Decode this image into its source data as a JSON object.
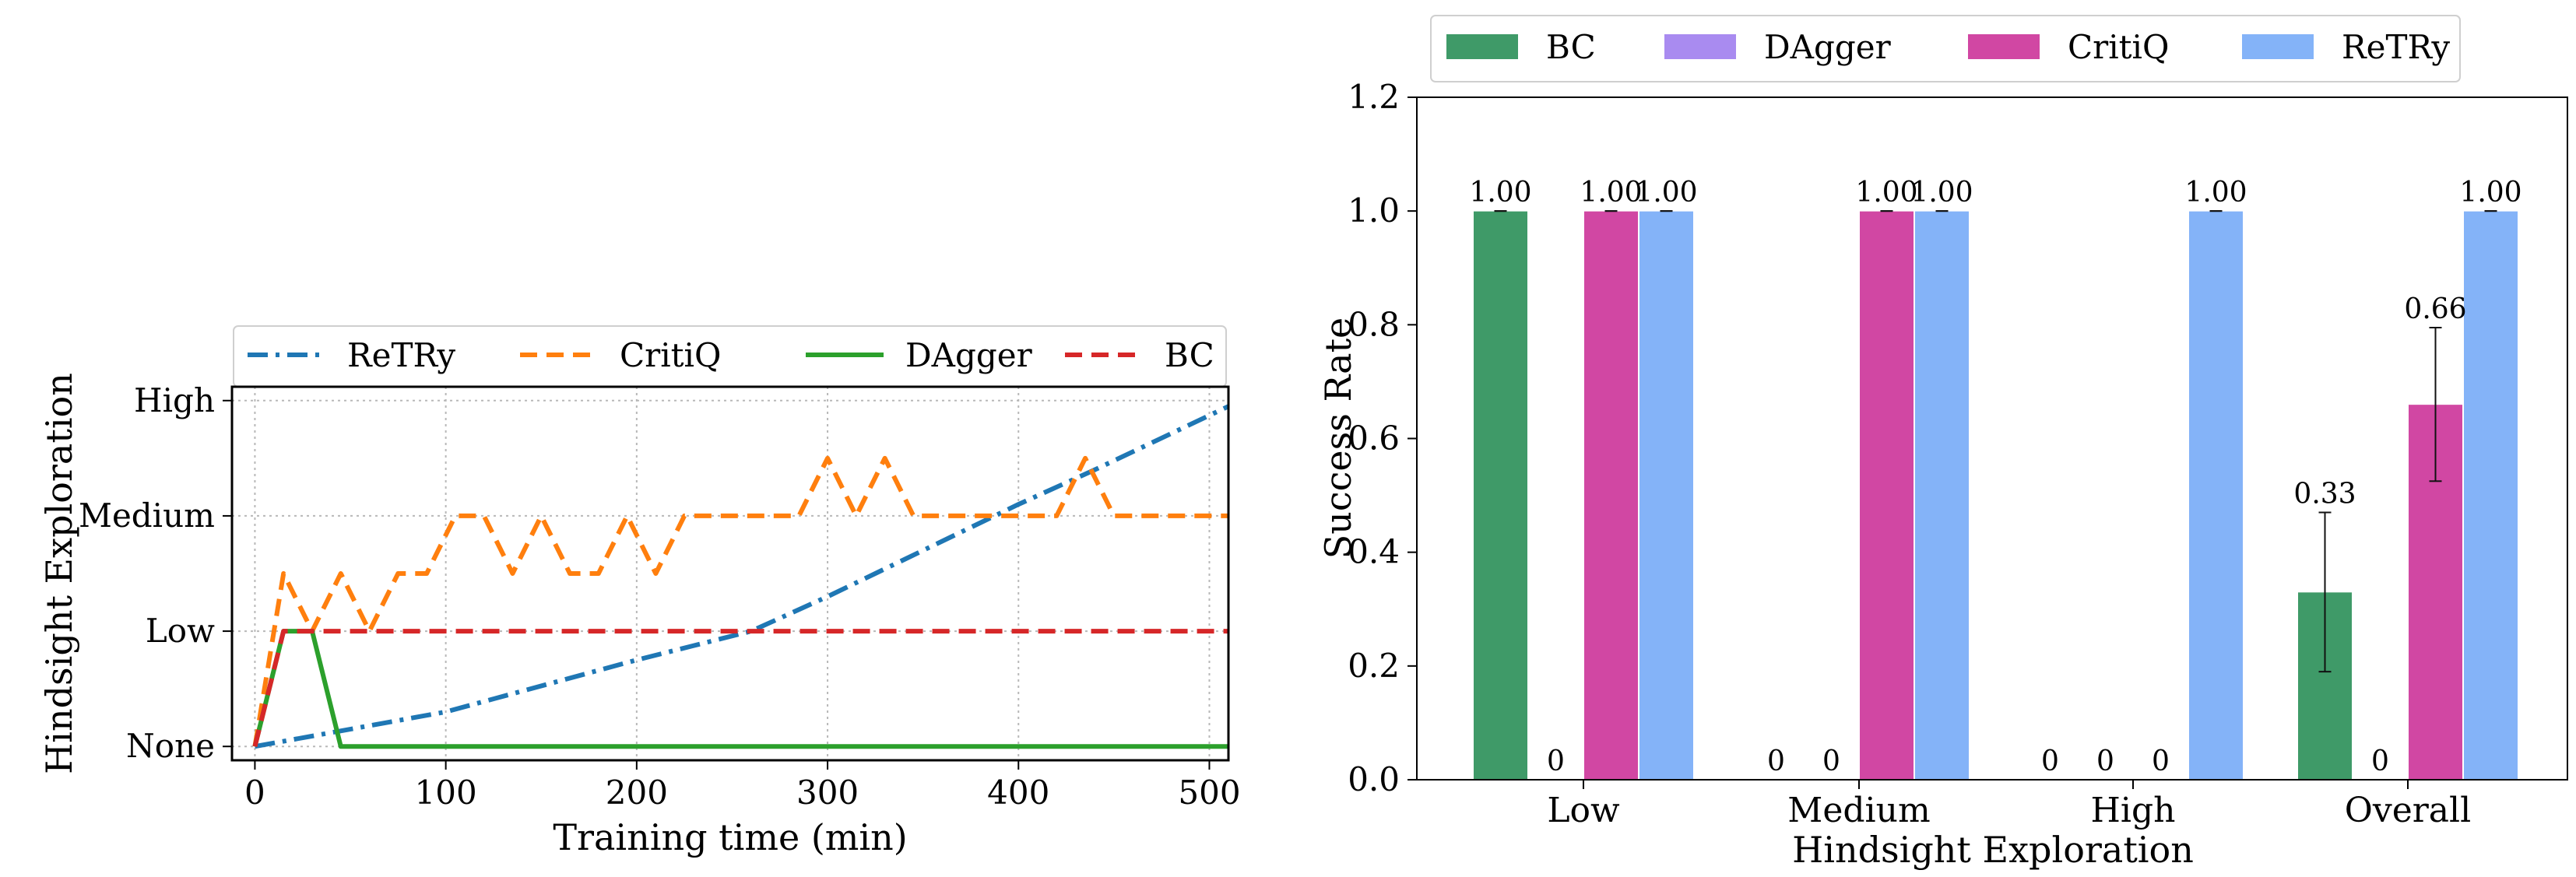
{
  "chart_data": [
    {
      "type": "line",
      "xlabel": "Training time (min)",
      "ylabel": "Hindsight Exploration",
      "xlim": [
        -12,
        510
      ],
      "ylim": [
        -0.12,
        3.12
      ],
      "x_ticks": [
        0,
        100,
        200,
        300,
        400,
        500
      ],
      "y_ticks": [
        0,
        1,
        2,
        3
      ],
      "y_tick_labels": [
        "None",
        "Low",
        "Medium",
        "High"
      ],
      "grid": true,
      "legend_position": "top",
      "series": [
        {
          "name": "ReTRy",
          "color": "#1f77b4",
          "style": "dashdot",
          "points": [
            [
              0,
              0
            ],
            [
              100,
              0.3
            ],
            [
              200,
              0.75
            ],
            [
              260,
              1.0
            ],
            [
              300,
              1.3
            ],
            [
              400,
              2.1
            ],
            [
              440,
              2.4
            ],
            [
              510,
              2.95
            ]
          ]
        },
        {
          "name": "CritiQ",
          "color": "#ff7f0e",
          "style": "dashed",
          "points": [
            [
              0,
              0
            ],
            [
              15,
              1.5
            ],
            [
              30,
              1.0
            ],
            [
              45,
              1.5
            ],
            [
              60,
              1.0
            ],
            [
              75,
              1.5
            ],
            [
              90,
              1.5
            ],
            [
              105,
              2.0
            ],
            [
              120,
              2.0
            ],
            [
              135,
              1.5
            ],
            [
              150,
              2.0
            ],
            [
              165,
              1.5
            ],
            [
              180,
              1.5
            ],
            [
              195,
              2.0
            ],
            [
              210,
              1.5
            ],
            [
              225,
              2.0
            ],
            [
              240,
              2.0
            ],
            [
              255,
              2.0
            ],
            [
              270,
              2.0
            ],
            [
              285,
              2.0
            ],
            [
              300,
              2.5
            ],
            [
              315,
              2.0
            ],
            [
              330,
              2.5
            ],
            [
              345,
              2.0
            ],
            [
              360,
              2.0
            ],
            [
              375,
              2.0
            ],
            [
              390,
              2.0
            ],
            [
              405,
              2.0
            ],
            [
              420,
              2.0
            ],
            [
              435,
              2.5
            ],
            [
              450,
              2.0
            ],
            [
              465,
              2.0
            ],
            [
              480,
              2.0
            ],
            [
              495,
              2.0
            ],
            [
              510,
              2.0
            ]
          ]
        },
        {
          "name": "DAgger",
          "color": "#2ca02c",
          "style": "solid",
          "points": [
            [
              0,
              0
            ],
            [
              15,
              1.0
            ],
            [
              30,
              1.0
            ],
            [
              45,
              0
            ],
            [
              510,
              0
            ]
          ]
        },
        {
          "name": "BC",
          "color": "#d62728",
          "style": "dashed",
          "points": [
            [
              0,
              0
            ],
            [
              15,
              1.0
            ],
            [
              510,
              1.0
            ]
          ]
        }
      ]
    },
    {
      "type": "bar",
      "xlabel": "Hindsight Exploration",
      "ylabel": "Success Rate",
      "ylim": [
        0,
        1.2
      ],
      "y_ticks": [
        0.0,
        0.2,
        0.4,
        0.6,
        0.8,
        1.0,
        1.2
      ],
      "y_tick_labels": [
        "0.0",
        "0.2",
        "0.4",
        "0.6",
        "0.8",
        "1.0",
        "1.2"
      ],
      "categories": [
        "Low",
        "Medium",
        "High",
        "Overall"
      ],
      "legend_position": "top",
      "series": [
        {
          "name": "BC",
          "color": "#3f9a68",
          "values": [
            1.0,
            0,
            0,
            0.33
          ],
          "labels": [
            "1.00",
            "0",
            "0",
            "0.33"
          ],
          "errors": [
            0,
            0,
            0,
            0.14
          ]
        },
        {
          "name": "DAgger",
          "color": "#a98bf0",
          "values": [
            0,
            0,
            0,
            0
          ],
          "labels": [
            "0",
            "0",
            "0",
            "0"
          ],
          "errors": [
            0,
            0,
            0,
            0
          ]
        },
        {
          "name": "CritiQ",
          "color": "#d147a3",
          "values": [
            1.0,
            1.0,
            0,
            0.66
          ],
          "labels": [
            "1.00",
            "1.00",
            "0",
            "0.66"
          ],
          "errors": [
            0,
            0,
            0,
            0.135
          ]
        },
        {
          "name": "ReTRy",
          "color": "#84b3f8",
          "values": [
            1.0,
            1.0,
            1.0,
            1.0
          ],
          "labels": [
            "1.00",
            "1.00",
            "1.00",
            "1.00"
          ],
          "errors": [
            0,
            0,
            0,
            0
          ]
        }
      ]
    }
  ]
}
